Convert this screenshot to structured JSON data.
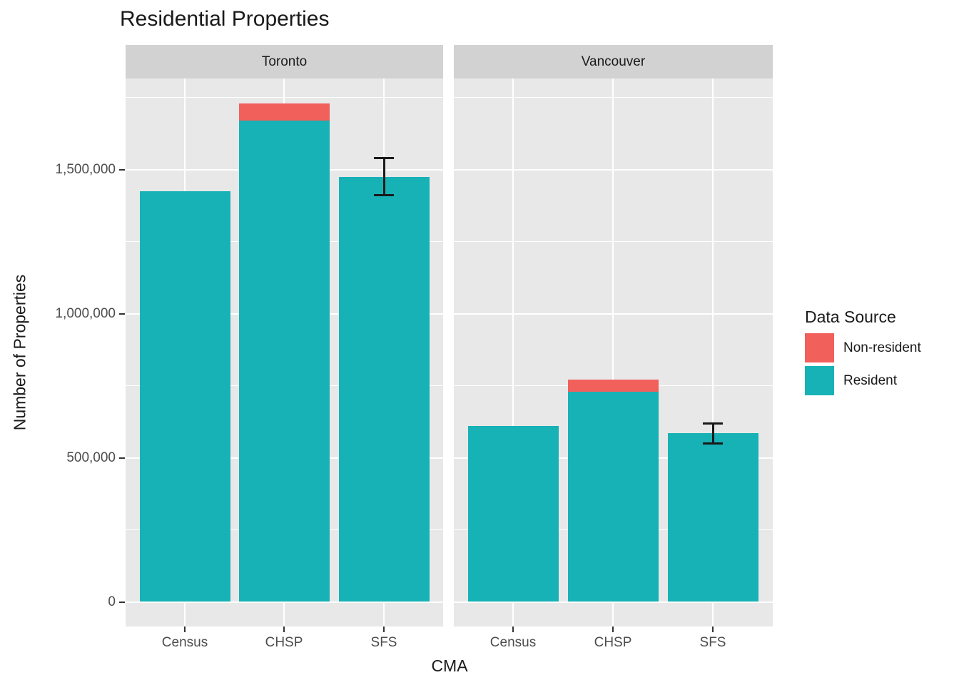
{
  "chart_data": {
    "type": "bar",
    "stacked": true,
    "title": "Residential Properties",
    "xlabel": "CMA",
    "ylabel": "Number of Properties",
    "ylim": [
      -86500,
      1816500
    ],
    "yticks": [
      0,
      500000,
      1000000,
      1500000
    ],
    "ytick_labels": [
      "0",
      "500,000",
      "1,000,000",
      "1,500,000"
    ],
    "yticks_minor": [
      250000,
      750000,
      1250000,
      1750000
    ],
    "grid": "white major and minor horizontal gridlines; white vertical gridlines at each category",
    "legend_position": "right",
    "facets": [
      {
        "label": "Toronto",
        "categories": [
          "Census",
          "CHSP",
          "SFS"
        ],
        "series": [
          {
            "name": "Resident",
            "values": [
              1425000,
              1670000,
              1475000
            ]
          },
          {
            "name": "Non-resident",
            "values": [
              0,
              60000,
              0
            ]
          }
        ],
        "error_bars": [
          {
            "category": "SFS",
            "lower": 1410000,
            "upper": 1540000
          }
        ]
      },
      {
        "label": "Vancouver",
        "categories": [
          "Census",
          "CHSP",
          "SFS"
        ],
        "series": [
          {
            "name": "Resident",
            "values": [
              610000,
              730000,
              585000
            ]
          },
          {
            "name": "Non-resident",
            "values": [
              0,
              40000,
              0
            ]
          }
        ],
        "error_bars": [
          {
            "category": "SFS",
            "lower": 550000,
            "upper": 620000
          }
        ]
      }
    ],
    "legend": {
      "title": "Data Source",
      "entries": [
        {
          "label": "Non-resident",
          "color": "#F2605C"
        },
        {
          "label": "Resident",
          "color": "#17B2B6"
        }
      ]
    },
    "colors": {
      "resident": "#17B2B6",
      "non_resident": "#F2605C",
      "panel_background": "#E8E8E8",
      "strip_background": "#D2D2D2",
      "gridline": "#FFFFFF",
      "axis_text": "#4D4D4D",
      "text": "#1A1A1A",
      "error_bar": "#1A1A1A"
    }
  }
}
